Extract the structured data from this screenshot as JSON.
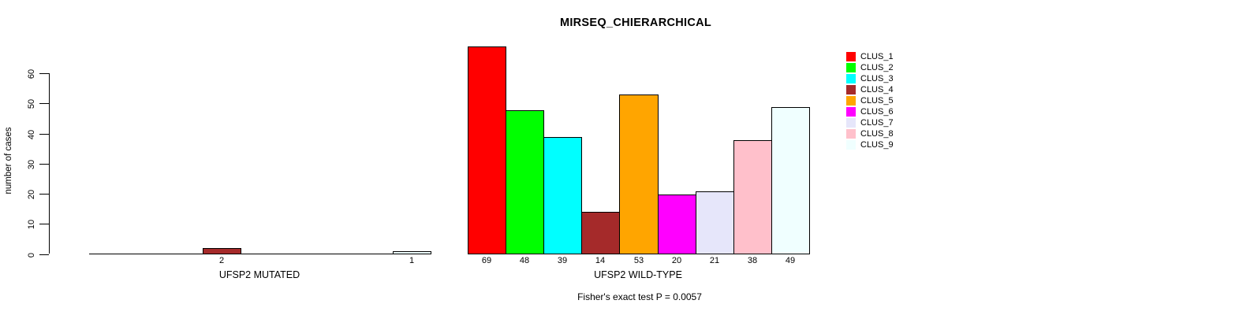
{
  "chart_data": {
    "type": "bar",
    "title": "MIRSEQ_CHIERARCHICAL",
    "ylabel": "number of cases",
    "xlabel": "",
    "ylim": [
      0,
      60
    ],
    "yticks": [
      0,
      10,
      20,
      30,
      40,
      50,
      60
    ],
    "grid": false,
    "legend_position": "top-right",
    "clusters": [
      "CLUS_1",
      "CLUS_2",
      "CLUS_3",
      "CLUS_4",
      "CLUS_5",
      "CLUS_6",
      "CLUS_7",
      "CLUS_8",
      "CLUS_9"
    ],
    "cluster_colors": [
      "#FF0000",
      "#00FF00",
      "#00FFFF",
      "#A52A2A",
      "#FFA500",
      "#FF00FF",
      "#E6E6FA",
      "#FFC0CB",
      "#F0FFFF"
    ],
    "groups": [
      {
        "label": "UFSP2 MUTATED",
        "values": [
          0,
          0,
          0,
          2,
          0,
          0,
          0,
          0,
          1
        ]
      },
      {
        "label": "UFSP2 WILD-TYPE",
        "values": [
          69,
          48,
          39,
          14,
          53,
          20,
          21,
          38,
          49
        ]
      }
    ],
    "annotation": "Fisher's exact test P = 0.0057"
  }
}
